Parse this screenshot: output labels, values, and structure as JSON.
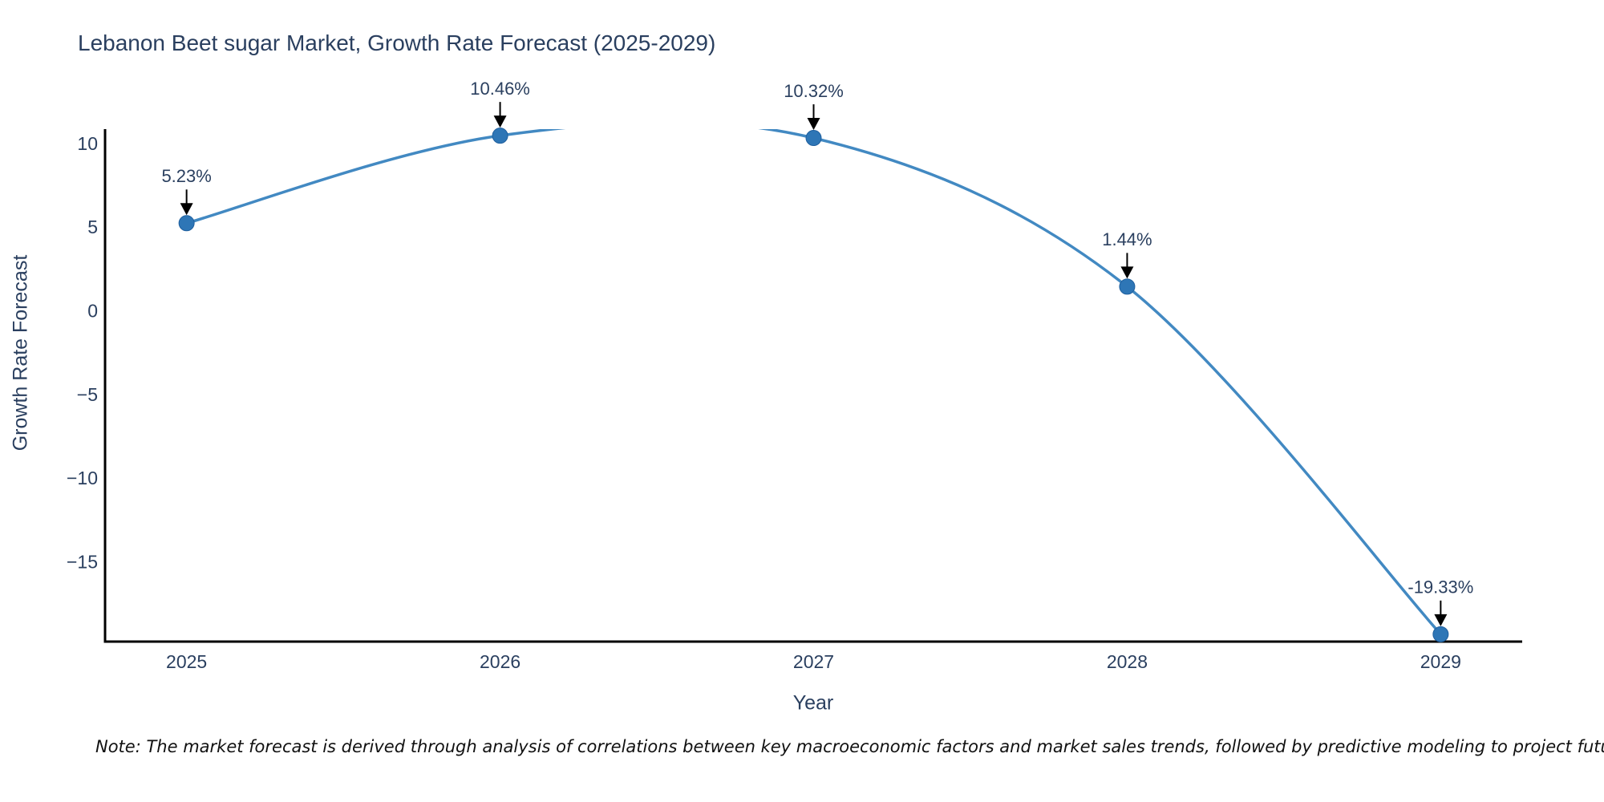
{
  "page": {
    "title": "Lebanon Beet sugar Market, Growth Rate Forecast (2025-2029)",
    "note": "Note: The market forecast is derived through analysis of correlations between key macroeconomic factors and market sales trends, followed by predictive modeling to project future sales."
  },
  "colors": {
    "text": "#2a3f5f",
    "line": "#4289c2",
    "marker_fill": "#2e76b6",
    "marker_edge": "#1f5f9e",
    "axis_line": "#000000",
    "annotation_arrow": "#000000",
    "background": "#ffffff"
  },
  "chart_data": {
    "type": "line",
    "title": "Lebanon Beet sugar Market, Growth Rate Forecast (2025-2029)",
    "xlabel": "Year",
    "ylabel": "Growth Rate Forecast",
    "x": [
      2025,
      2026,
      2027,
      2028,
      2029
    ],
    "values": [
      5.23,
      10.46,
      10.32,
      1.44,
      -19.33
    ],
    "point_labels": [
      "5.23%",
      "10.46%",
      "10.32%",
      "1.44%",
      "-19.33%"
    ],
    "xtick_labels": [
      "2025",
      "2026",
      "2027",
      "2028",
      "2029"
    ],
    "ytick_values": [
      10,
      5,
      0,
      -5,
      -10,
      -15
    ],
    "xlim": [
      2024.74,
      2029.26
    ],
    "ylim": [
      -19.77,
      10.85
    ],
    "line_shape": "spline",
    "grid": false,
    "legend_position": "none",
    "annotation_style": "value label with down arrow to each point"
  }
}
